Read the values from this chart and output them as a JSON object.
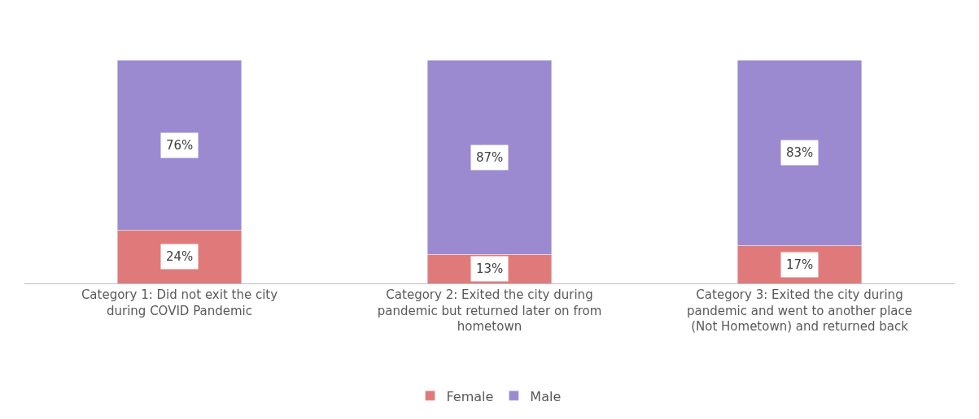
{
  "chart_data": {
    "type": "bar",
    "stacked": true,
    "categories": [
      "Category 1: Did not exit the city during COVID Pandemic",
      "Category 2: Exited the city during pandemic but returned later on from hometown",
      "Category 3: Exited the city during pandemic and went to another place (Not Hometown) and returned back"
    ],
    "series": [
      {
        "name": "Female",
        "color": "#e07a7a",
        "values": [
          24,
          13,
          17
        ],
        "value_labels": [
          "24%",
          "13%",
          "17%"
        ]
      },
      {
        "name": "Male",
        "color": "#9b8ad0",
        "values": [
          76,
          87,
          83
        ],
        "value_labels": [
          "76%",
          "87%",
          "83%"
        ]
      }
    ],
    "legend": "bottom"
  }
}
